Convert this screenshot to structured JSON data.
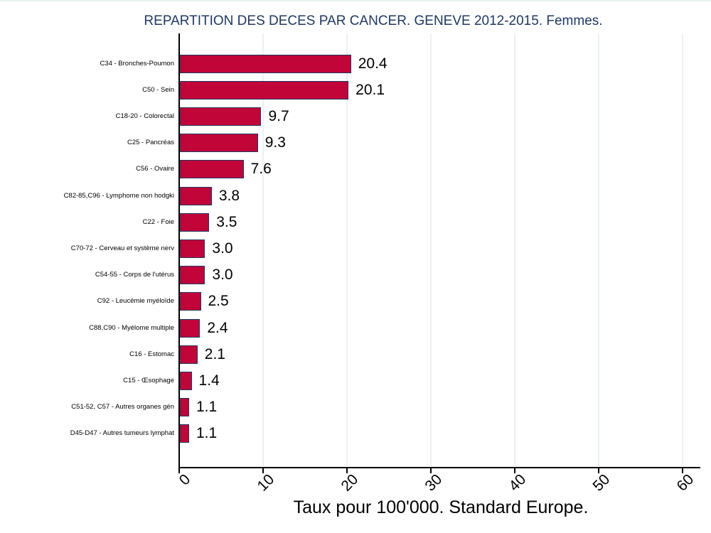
{
  "title": "REPARTITION DES DECES PAR CANCER. GENEVE 2012-2015. Femmes.",
  "colors": {
    "title_text": "#1F3864",
    "bar_fill": "#C20538",
    "bar_border": "#1F3864",
    "axis_line": "#000000",
    "gridline": "#EAF1F5",
    "label_text": "#000000"
  },
  "chart_data": {
    "type": "bar",
    "orientation": "horizontal",
    "title": "REPARTITION DES DECES PAR CANCER. GENEVE 2012-2015. Femmes.",
    "xlabel": "Taux pour 100'000. Standard Europe.",
    "ylabel": "",
    "xlim": [
      0,
      60
    ],
    "xticks": [
      0,
      10,
      20,
      30,
      40,
      50,
      60
    ],
    "grid": "vertical gridlines on, light color",
    "legend": "none",
    "categories": [
      "C34 - Bronches-Poumon",
      "C50 - Sein",
      "C18-20 - Colorectal",
      "C25 - Pancréas",
      "C56 - Ovaire",
      "C82-85,C96 - Lymphome non hodgki",
      "C22 - Foie",
      "C70-72 - Cerveau et système nerv",
      "C54-55 - Corps de l'utérus",
      "C92 - Leucémie myéloïde",
      "C88,C90 - Myélome multiple",
      "C16 - Estomac",
      "C15 - Œsophage",
      "C51-52, C57 - Autres organes gén",
      "D45-D47 - Autres tumeurs lymphat"
    ],
    "values": [
      20.4,
      20.1,
      9.7,
      9.3,
      7.6,
      3.8,
      3.5,
      3.0,
      3.0,
      2.5,
      2.4,
      2.1,
      1.4,
      1.1,
      1.1
    ],
    "value_labels": [
      "20.4",
      "20.1",
      "9.7",
      "9.3",
      "7.6",
      "3.8",
      "3.5",
      "3.0",
      "3.0",
      "2.5",
      "2.4",
      "2.1",
      "1.4",
      "1.1",
      "1.1"
    ]
  }
}
